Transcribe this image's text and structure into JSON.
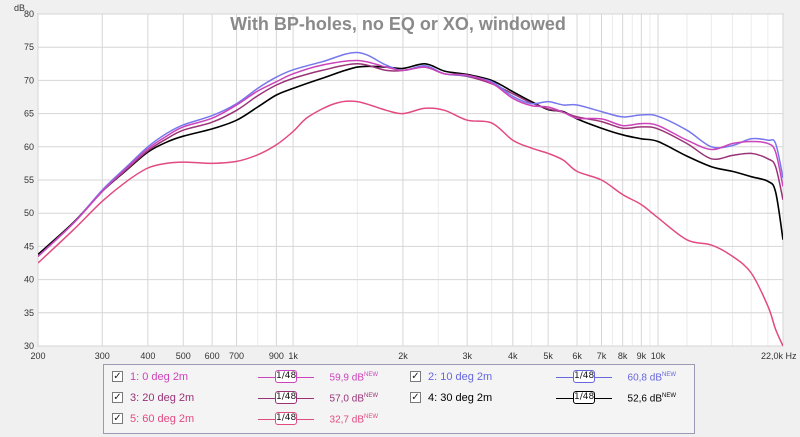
{
  "chart_data": {
    "type": "line",
    "title": "With BP-holes, no EQ or XO, windowed",
    "ylabel": "dB",
    "xunit": "Hz",
    "xscale": "log",
    "xlim": [
      200,
      22000
    ],
    "ylim": [
      30,
      80
    ],
    "grid": true,
    "y_ticks": [
      30,
      35,
      40,
      45,
      50,
      55,
      60,
      65,
      70,
      75,
      80
    ],
    "x_ticks": [
      {
        "v": 200,
        "label": "200"
      },
      {
        "v": 300,
        "label": "300"
      },
      {
        "v": 400,
        "label": "400"
      },
      {
        "v": 500,
        "label": "500"
      },
      {
        "v": 600,
        "label": "600"
      },
      {
        "v": 700,
        "label": "700"
      },
      {
        "v": 900,
        "label": "900"
      },
      {
        "v": 1000,
        "label": "1k"
      },
      {
        "v": 2000,
        "label": "2k"
      },
      {
        "v": 3000,
        "label": "3k"
      },
      {
        "v": 4000,
        "label": "4k"
      },
      {
        "v": 5000,
        "label": "5k"
      },
      {
        "v": 6000,
        "label": "6k"
      },
      {
        "v": 7000,
        "label": "7k"
      },
      {
        "v": 8000,
        "label": "8k"
      },
      {
        "v": 9000,
        "label": "9k"
      },
      {
        "v": 10000,
        "label": "10k"
      },
      {
        "v": 22000,
        "label": "22,0k Hz"
      }
    ],
    "minor_x_grid": [
      800,
      1500,
      2500,
      3500,
      4500,
      6500,
      7500,
      8500,
      9500,
      12000,
      14000,
      16000,
      18000,
      20000
    ],
    "series": [
      {
        "name": "1: 0 deg 2m",
        "color": "#cc44bb",
        "x": [
          200,
          250,
          300,
          350,
          400,
          450,
          500,
          600,
          700,
          800,
          900,
          1000,
          1200,
          1500,
          1800,
          2000,
          2300,
          2600,
          3000,
          3500,
          4000,
          4500,
          5000,
          5500,
          6000,
          7000,
          8000,
          9000,
          10000,
          12000,
          14000,
          16000,
          18000,
          20000,
          21000,
          22000
        ],
        "y": [
          43.5,
          48.5,
          53.3,
          56.8,
          59.7,
          61.6,
          63.0,
          64.3,
          66.3,
          68.4,
          69.8,
          71.0,
          72.3,
          73.0,
          72.0,
          71.5,
          72.0,
          71.0,
          70.8,
          69.6,
          67.3,
          66.2,
          66.0,
          65.2,
          64.3,
          64.2,
          63.2,
          63.5,
          63.2,
          61.0,
          59.6,
          60.5,
          60.8,
          60.5,
          59.2,
          54.0
        ]
      },
      {
        "name": "2: 10 deg 2m",
        "color": "#7777ee",
        "x": [
          200,
          250,
          300,
          350,
          400,
          450,
          500,
          600,
          700,
          800,
          900,
          1000,
          1200,
          1500,
          1800,
          2000,
          2300,
          2600,
          3000,
          3500,
          4000,
          4500,
          5000,
          5500,
          6000,
          7000,
          8000,
          9000,
          10000,
          12000,
          14000,
          16000,
          18000,
          20000,
          21000,
          22000
        ],
        "y": [
          43.5,
          48.5,
          53.5,
          57.0,
          60.0,
          62.0,
          63.3,
          64.7,
          66.5,
          68.8,
          70.5,
          71.6,
          72.8,
          74.2,
          72.3,
          71.5,
          72.2,
          71.0,
          70.7,
          69.8,
          67.6,
          66.5,
          66.8,
          66.3,
          66.3,
          65.3,
          64.5,
          64.8,
          64.6,
          62.5,
          60.0,
          60.2,
          61.2,
          61.0,
          60.5,
          55.3
        ]
      },
      {
        "name": "3: 20 deg 2m",
        "color": "#993377",
        "x": [
          200,
          250,
          300,
          350,
          400,
          450,
          500,
          600,
          700,
          800,
          900,
          1000,
          1200,
          1500,
          1800,
          2000,
          2300,
          2600,
          3000,
          3500,
          4000,
          4500,
          5000,
          5500,
          6000,
          7000,
          8000,
          9000,
          10000,
          12000,
          14000,
          16000,
          18000,
          20000,
          21000,
          22000
        ],
        "y": [
          43.5,
          48.5,
          53.3,
          56.6,
          59.4,
          61.2,
          62.5,
          63.7,
          65.5,
          67.7,
          69.3,
          70.3,
          71.5,
          72.5,
          71.5,
          71.5,
          72.0,
          71.0,
          70.6,
          69.5,
          68.0,
          66.6,
          65.7,
          65.2,
          64.5,
          63.8,
          62.8,
          63.0,
          62.7,
          60.5,
          58.2,
          58.7,
          59.0,
          58.2,
          57.0,
          52.0
        ]
      },
      {
        "name": "4: 30 deg 2m",
        "color": "#000000",
        "x": [
          200,
          250,
          300,
          350,
          400,
          450,
          500,
          600,
          700,
          800,
          900,
          1000,
          1200,
          1500,
          1800,
          2000,
          2300,
          2600,
          3000,
          3500,
          4000,
          4500,
          5000,
          5500,
          6000,
          7000,
          8000,
          9000,
          10000,
          12000,
          14000,
          16000,
          18000,
          20000,
          21000,
          22000
        ],
        "y": [
          43.8,
          48.6,
          53.3,
          56.5,
          59.2,
          60.7,
          61.6,
          62.7,
          64.0,
          66.0,
          67.8,
          68.8,
          70.3,
          72.0,
          72.0,
          71.8,
          72.5,
          71.4,
          70.9,
          70.0,
          68.3,
          66.8,
          65.6,
          65.3,
          64.2,
          62.8,
          61.8,
          61.2,
          60.8,
          58.6,
          57.0,
          56.3,
          55.5,
          54.8,
          53.2,
          46.0
        ]
      },
      {
        "name": "5: 60 deg 2m",
        "color": "#e24a82",
        "x": [
          200,
          250,
          300,
          350,
          400,
          450,
          500,
          550,
          600,
          700,
          800,
          900,
          1000,
          1100,
          1300,
          1500,
          1800,
          2000,
          2300,
          2600,
          3000,
          3500,
          4000,
          4500,
          5000,
          5500,
          6000,
          7000,
          8000,
          9000,
          10000,
          12000,
          14000,
          16000,
          18000,
          20000,
          21000,
          22000
        ],
        "y": [
          42.5,
          47.5,
          51.8,
          54.8,
          56.8,
          57.5,
          57.7,
          57.6,
          57.5,
          57.8,
          58.8,
          60.3,
          62.3,
          64.5,
          66.5,
          66.8,
          65.5,
          65.0,
          65.8,
          65.5,
          64.0,
          63.6,
          61.0,
          59.8,
          59.0,
          58.0,
          56.3,
          55.0,
          52.8,
          51.3,
          49.3,
          46.0,
          45.2,
          43.5,
          41.0,
          36.0,
          32.5,
          30.0
        ]
      }
    ]
  },
  "legend": {
    "rows": [
      [
        {
          "checked": true,
          "name": "1: 0 deg 2m",
          "color": "#cc44bb",
          "smoothing": "1/48",
          "value": "59,9 dB",
          "badge": "NEW"
        },
        {
          "checked": true,
          "name": "2: 10 deg 2m",
          "color": "#6666dd",
          "smoothing": "1/48",
          "value": "60,8 dB",
          "badge": "NEW"
        }
      ],
      [
        {
          "checked": true,
          "name": "3: 20 deg 2m",
          "color": "#993377",
          "smoothing": "1/48",
          "value": "57,0 dB",
          "badge": "NEW"
        },
        {
          "checked": true,
          "name": "4: 30 deg 2m",
          "color": "#000000",
          "smoothing": "1/48",
          "value": "52,6 dB",
          "badge": "NEW"
        }
      ],
      [
        {
          "checked": true,
          "name": "5: 60 deg 2m",
          "color": "#e24a82",
          "smoothing": "1/48",
          "value": "32,7 dB",
          "badge": "NEW"
        }
      ]
    ]
  }
}
